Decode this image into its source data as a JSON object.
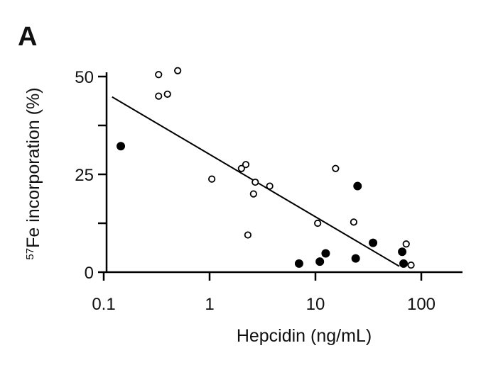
{
  "panel_label": "A",
  "chart_data": {
    "type": "scatter",
    "title": "",
    "xlabel": "Hepcidin (ng/mL)",
    "ylabel_superscript": "57",
    "ylabel_main": "Fe incorporation (%)",
    "xscale": "log",
    "xlim": [
      0.1,
      220
    ],
    "ylim": [
      0,
      50
    ],
    "x_ticks": [
      0.1,
      1,
      10,
      100
    ],
    "x_tick_labels": [
      "0.1",
      "1",
      "10",
      "100"
    ],
    "y_ticks": [
      0,
      25,
      50
    ],
    "y_tick_labels": [
      "0",
      "25",
      "50"
    ],
    "y_minor_ticks": [
      12.5,
      37.5
    ],
    "grid": false,
    "legend": "none",
    "series": [
      {
        "marker": "open-circle",
        "points": [
          {
            "x": 0.33,
            "y": 50.5
          },
          {
            "x": 0.5,
            "y": 51.5
          },
          {
            "x": 0.33,
            "y": 45
          },
          {
            "x": 0.4,
            "y": 45.5
          },
          {
            "x": 1.05,
            "y": 23.8
          },
          {
            "x": 2.0,
            "y": 26.5
          },
          {
            "x": 2.2,
            "y": 27.5
          },
          {
            "x": 2.7,
            "y": 23
          },
          {
            "x": 2.6,
            "y": 20
          },
          {
            "x": 3.7,
            "y": 22
          },
          {
            "x": 2.3,
            "y": 9.5
          },
          {
            "x": 15.5,
            "y": 26.5
          },
          {
            "x": 10.5,
            "y": 12.5
          },
          {
            "x": 23,
            "y": 12.8
          },
          {
            "x": 72,
            "y": 7.2
          },
          {
            "x": 80,
            "y": 1.8
          }
        ]
      },
      {
        "marker": "filled-circle",
        "points": [
          {
            "x": 0.145,
            "y": 32.2
          },
          {
            "x": 25,
            "y": 22
          },
          {
            "x": 35,
            "y": 7.5
          },
          {
            "x": 12.5,
            "y": 4.8
          },
          {
            "x": 24,
            "y": 3.5
          },
          {
            "x": 11,
            "y": 2.7
          },
          {
            "x": 7,
            "y": 2.2
          },
          {
            "x": 66,
            "y": 5.2
          },
          {
            "x": 68,
            "y": 2.2
          }
        ]
      }
    ],
    "trendline": {
      "x": [
        0.12,
        62
      ],
      "y": [
        44.8,
        1.5
      ]
    }
  }
}
